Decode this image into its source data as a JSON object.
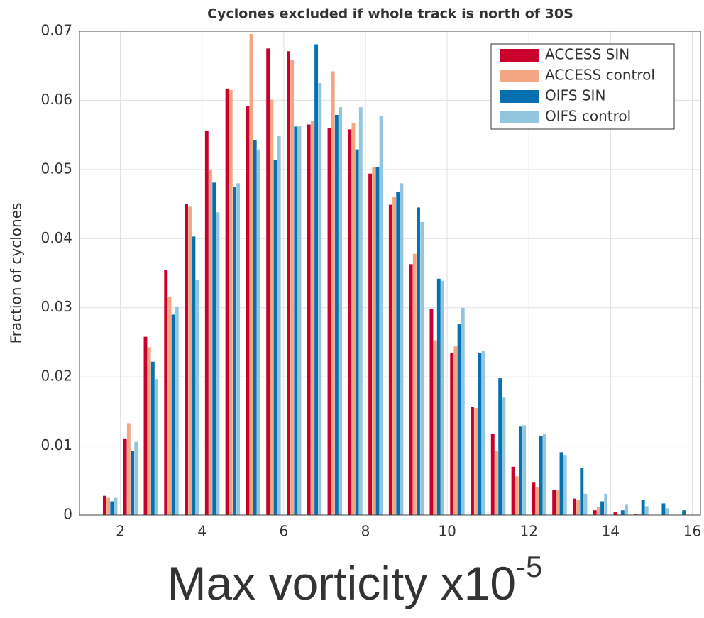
{
  "chart_data": {
    "type": "bar",
    "title": "Cyclones excluded if whole track is north of 30S",
    "x_label": "Max vorticity x10",
    "x_label_superscript": "-5",
    "y_label": "Fraction of cyclones",
    "x": [
      1.75,
      2.25,
      2.75,
      3.25,
      3.75,
      4.25,
      4.75,
      5.25,
      5.75,
      6.25,
      6.75,
      7.25,
      7.75,
      8.25,
      8.75,
      9.25,
      9.75,
      10.25,
      10.75,
      11.25,
      11.75,
      12.25,
      12.75,
      13.25,
      13.75,
      14.25,
      14.75,
      15.25,
      15.75
    ],
    "series": [
      {
        "name": "ACCESS SIN",
        "color": "#c9002b",
        "values": [
          0.0028,
          0.011,
          0.0258,
          0.0355,
          0.045,
          0.0556,
          0.0617,
          0.0592,
          0.0675,
          0.0671,
          0.0565,
          0.056,
          0.0558,
          0.0494,
          0.0449,
          0.0363,
          0.0298,
          0.0234,
          0.0156,
          0.0118,
          0.007,
          0.0047,
          0.0036,
          0.0024,
          0.0007,
          0.0004,
          0.0001,
          0,
          0
        ]
      },
      {
        "name": "ACCESS control",
        "color": "#f4a582",
        "values": [
          0.0025,
          0.0133,
          0.0243,
          0.0316,
          0.0446,
          0.05,
          0.0615,
          0.0696,
          0.0601,
          0.0659,
          0.057,
          0.0642,
          0.0567,
          0.0504,
          0.046,
          0.0378,
          0.0253,
          0.0244,
          0.0155,
          0.0093,
          0.0056,
          0.004,
          0.0036,
          0.0022,
          0.0012,
          0.0002,
          0.0002,
          0,
          0
        ]
      },
      {
        "name": "OIFS SIN",
        "color": "#0571b0",
        "values": [
          0.002,
          0.0093,
          0.0222,
          0.029,
          0.0403,
          0.0481,
          0.0475,
          0.0542,
          0.0514,
          0.0562,
          0.0681,
          0.0579,
          0.0529,
          0.0503,
          0.0467,
          0.0445,
          0.0342,
          0.0276,
          0.0235,
          0.0198,
          0.0128,
          0.0115,
          0.0091,
          0.0068,
          0.002,
          0.0007,
          0.0022,
          0.0017,
          0.0007
        ]
      },
      {
        "name": "OIFS control",
        "color": "#92c5de",
        "values": [
          0.0025,
          0.0106,
          0.0197,
          0.0302,
          0.034,
          0.0438,
          0.048,
          0.0529,
          0.0549,
          0.0563,
          0.0625,
          0.059,
          0.059,
          0.0577,
          0.048,
          0.0424,
          0.0339,
          0.03,
          0.0237,
          0.017,
          0.013,
          0.0117,
          0.0087,
          0.0031,
          0.0031,
          0.0015,
          0.0013,
          0.001,
          0
        ]
      }
    ],
    "xlim": [
      1,
      16.2
    ],
    "xticks": [
      2,
      4,
      6,
      8,
      10,
      12,
      14,
      16
    ],
    "ylim": [
      0,
      0.07
    ],
    "yticks": [
      0,
      0.01,
      0.02,
      0.03,
      0.04,
      0.05,
      0.06,
      0.07
    ],
    "grid": true,
    "legend": "upper right"
  }
}
